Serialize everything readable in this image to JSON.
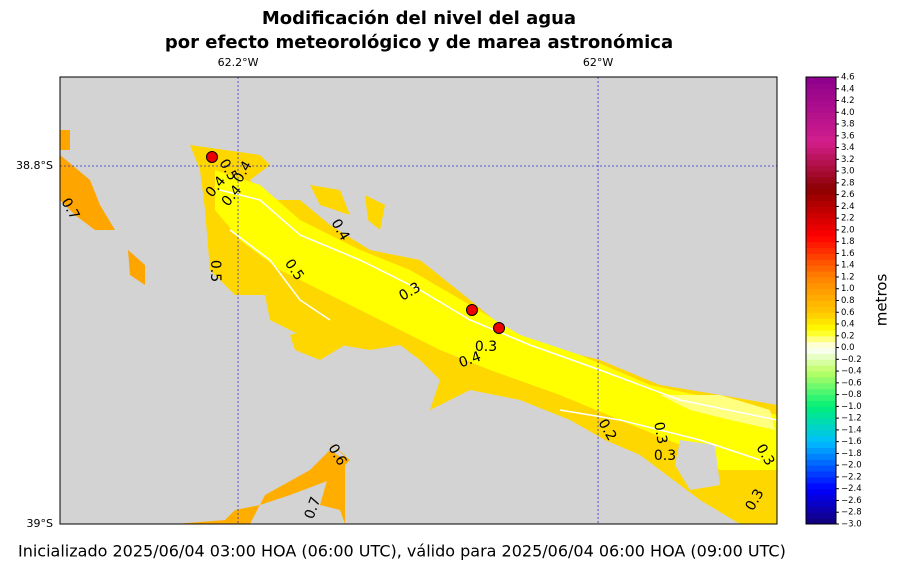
{
  "title": [
    "Modificación del nivel del agua",
    "por efecto meteorológico y de marea astronómica"
  ],
  "map": {
    "xlim": [
      -62.2989,
      -61.9006
    ],
    "ylim": [
      -39.0,
      -38.7503
    ],
    "xticks": [
      {
        "value": -62.2,
        "label": "62.2°W"
      },
      {
        "value": -62,
        "label": "62°W"
      }
    ],
    "yticks": [
      {
        "value": -38.8,
        "label": "38.8°S"
      },
      {
        "value": -39,
        "label": "39°S"
      }
    ],
    "contour_labels": [
      "0.7",
      "0.4",
      "0.5",
      "0.4",
      "0.4",
      "0.5",
      "0.4",
      "0.5",
      "0.3",
      "0.3",
      "0.4",
      "0.2",
      "0.3",
      "0.3",
      "0.3",
      "0.6",
      "0.7",
      "0.3"
    ]
  },
  "colorbar": {
    "label": "metros",
    "lim": [
      -3.0,
      4.6
    ],
    "ticks": [
      {
        "value": -3,
        "label": "−3.0"
      },
      {
        "value": -2.8,
        "label": "−2.8"
      },
      {
        "value": -2.6,
        "label": "−2.6"
      },
      {
        "value": -2.4,
        "label": "−2.4"
      },
      {
        "value": -2.2,
        "label": "−2.2"
      },
      {
        "value": -2,
        "label": "−2.0"
      },
      {
        "value": -1.8,
        "label": "−1.8"
      },
      {
        "value": -1.6,
        "label": "−1.6"
      },
      {
        "value": -1.4,
        "label": "−1.4"
      },
      {
        "value": -1.2,
        "label": "−1.2"
      },
      {
        "value": -1,
        "label": "−1.0"
      },
      {
        "value": -0.8,
        "label": "−0.8"
      },
      {
        "value": -0.6,
        "label": "−0.6"
      },
      {
        "value": -0.4,
        "label": "−0.4"
      },
      {
        "value": -0.2,
        "label": "−0.2"
      },
      {
        "value": 0,
        "label": "0.0"
      },
      0.2,
      0.4,
      0.6,
      0.8,
      {
        "value": 1,
        "label": "1.0"
      },
      1.2,
      1.4,
      1.6,
      1.8,
      {
        "value": 2,
        "label": "2.0"
      },
      2.2,
      2.4,
      2.6,
      2.8,
      {
        "value": 3,
        "label": "3.0"
      },
      3.2,
      3.4,
      3.6,
      3.8,
      {
        "value": 4,
        "label": "4.0"
      },
      4.2,
      4.4,
      4.6
    ]
  },
  "footer": "Inicializado 2025/06/04 03:00 HOA (06:00 UTC), válido para 2025/06/04 06:00 HOA (09:00 UTC)"
}
